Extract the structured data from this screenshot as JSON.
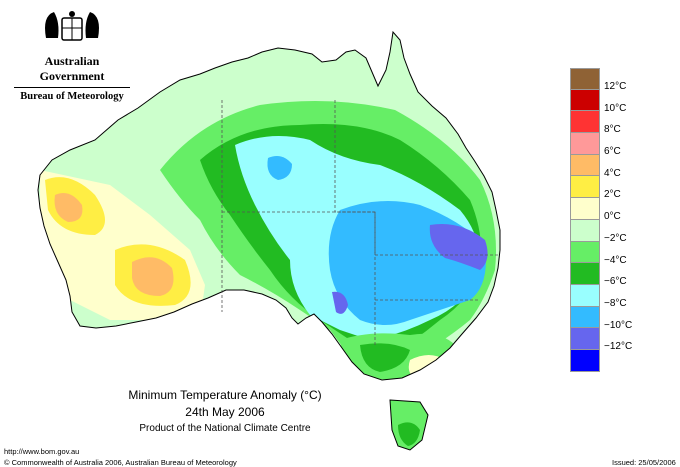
{
  "header": {
    "government": "Australian Government",
    "bureau": "Bureau of Meteorology"
  },
  "caption": {
    "title": "Minimum Temperature Anomaly (°C)",
    "date": "24th May 2006",
    "product": "Product of the National Climate Centre"
  },
  "footer": {
    "url": "http://www.bom.gov.au",
    "copyright": "© Commonwealth of Australia 2006, Australian Bureau of Meteorology",
    "issued": "Issued: 25/05/2006"
  },
  "legend": {
    "swatches": [
      {
        "color": "#8f6235"
      },
      {
        "color": "#cc0000"
      },
      {
        "color": "#ff3333"
      },
      {
        "color": "#ff9999"
      },
      {
        "color": "#ffbb66"
      },
      {
        "color": "#ffee44"
      },
      {
        "color": "#ffffcc"
      },
      {
        "color": "#ccffcc"
      },
      {
        "color": "#66ee66"
      },
      {
        "color": "#22bb22"
      },
      {
        "color": "#99ffff"
      },
      {
        "color": "#33bbff"
      },
      {
        "color": "#6666ee"
      },
      {
        "color": "#0000ff"
      }
    ],
    "labels": [
      "12°C",
      "10°C",
      "8°C",
      "6°C",
      "4°C",
      "2°C",
      "0°C",
      "−2°C",
      "−4°C",
      "−6°C",
      "−8°C",
      "−10°C",
      "−12°C"
    ]
  },
  "colors": {
    "land_neutral": "#ccffcc",
    "border": "#000000",
    "state_border": "#555555"
  }
}
